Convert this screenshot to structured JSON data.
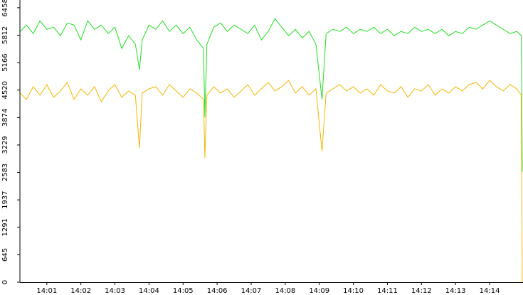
{
  "chart_data": {
    "type": "line",
    "x": [
      0.22,
      0.4,
      0.6,
      0.8,
      1.0,
      1.2,
      1.4,
      1.6,
      1.8,
      2.0,
      2.2,
      2.4,
      2.6,
      2.8,
      3.0,
      3.2,
      3.4,
      3.6,
      3.72,
      3.8,
      4.0,
      4.2,
      4.4,
      4.6,
      4.8,
      5.0,
      5.2,
      5.4,
      5.6,
      5.64,
      5.7,
      5.9,
      6.1,
      6.3,
      6.5,
      6.7,
      6.9,
      7.1,
      7.3,
      7.5,
      7.7,
      7.9,
      8.1,
      8.3,
      8.5,
      8.7,
      8.9,
      9.08,
      9.2,
      9.4,
      9.6,
      9.8,
      10.0,
      10.2,
      10.4,
      10.6,
      10.8,
      11.0,
      11.2,
      11.4,
      11.6,
      11.8,
      12.0,
      12.2,
      12.4,
      12.6,
      12.8,
      13.0,
      13.2,
      13.4,
      13.6,
      13.8,
      14.0,
      14.2,
      14.4,
      14.6,
      14.8,
      14.93,
      14.96
    ],
    "series": [
      {
        "color": "#22dd22",
        "values": [
          5900,
          6050,
          5850,
          6150,
          5950,
          6000,
          5800,
          6100,
          6050,
          5700,
          6150,
          5950,
          6050,
          5850,
          6000,
          5500,
          5800,
          5600,
          5000,
          5700,
          6050,
          5950,
          6150,
          5900,
          6050,
          5850,
          6000,
          5700,
          5500,
          3880,
          5600,
          6000,
          6100,
          5900,
          6050,
          5950,
          5850,
          6050,
          5700,
          5900,
          6200,
          6000,
          5800,
          5950,
          5750,
          5900,
          5600,
          4300,
          5850,
          5950,
          5900,
          6000,
          5850,
          5950,
          5900,
          6000,
          5850,
          5950,
          5800,
          5900,
          5850,
          6000,
          5900,
          5950,
          5850,
          5950,
          5800,
          5900,
          5850,
          6000,
          5950,
          6050,
          6150,
          6050,
          5950,
          5850,
          5900,
          5800,
          2600
        ]
      },
      {
        "color": "#f0b800",
        "values": [
          4450,
          4300,
          4600,
          4400,
          4650,
          4350,
          4500,
          4700,
          4300,
          4550,
          4400,
          4600,
          4250,
          4500,
          4650,
          4350,
          4500,
          4400,
          3160,
          4450,
          4550,
          4600,
          4400,
          4650,
          4500,
          4350,
          4550,
          4450,
          4300,
          2930,
          4400,
          4600,
          4450,
          4550,
          4350,
          4500,
          4650,
          4400,
          4550,
          4700,
          4500,
          4600,
          4750,
          4450,
          4600,
          4400,
          4550,
          3080,
          4450,
          4550,
          4650,
          4500,
          4600,
          4450,
          4550,
          4400,
          4650,
          4500,
          4450,
          4600,
          4350,
          4550,
          4500,
          4650,
          4400,
          4550,
          4450,
          4600,
          4500,
          4650,
          4700,
          4550,
          4750,
          4600,
          4500,
          4650,
          4550,
          4400,
          0
        ]
      }
    ],
    "xlim": [
      0.21,
      14.96
    ],
    "xticks": [
      {
        "value": 1,
        "label": "14:01"
      },
      {
        "value": 2,
        "label": "14:02"
      },
      {
        "value": 3,
        "label": "14:03"
      },
      {
        "value": 4,
        "label": "14:04"
      },
      {
        "value": 5,
        "label": "14:05"
      },
      {
        "value": 6,
        "label": "14:06"
      },
      {
        "value": 7,
        "label": "14:07"
      },
      {
        "value": 8,
        "label": "14:08"
      },
      {
        "value": 9,
        "label": "14:09"
      },
      {
        "value": 10,
        "label": "14:10"
      },
      {
        "value": 11,
        "label": "14:11"
      },
      {
        "value": 12,
        "label": "14:12"
      },
      {
        "value": 13,
        "label": "14:13"
      },
      {
        "value": 14,
        "label": "14:14"
      }
    ],
    "ylim": [
      0,
      6640
    ],
    "yticks": [
      0,
      645,
      1291,
      1937,
      2583,
      3229,
      3874,
      4520,
      5166,
      5812,
      6458
    ]
  }
}
